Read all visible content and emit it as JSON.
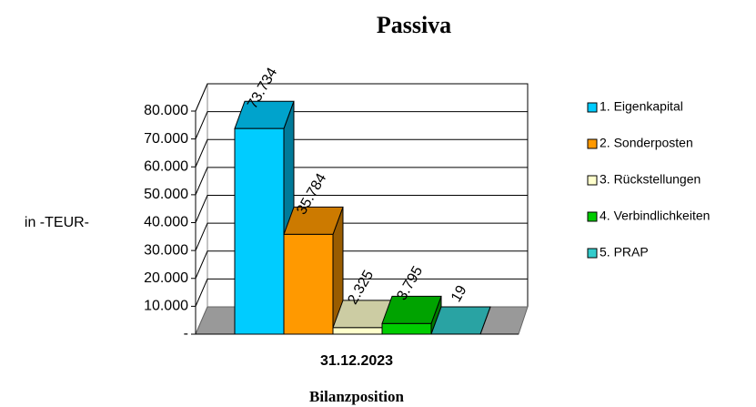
{
  "chart_data": {
    "type": "bar",
    "title": "Passiva",
    "x_label": "Bilanzposition",
    "y_label": "in -TEUR-",
    "categories": [
      "31.12.2023"
    ],
    "series": [
      {
        "name": "1. Eigenkapital",
        "color": "#00ccff",
        "values": [
          73734
        ],
        "value_labels": [
          "73.734"
        ]
      },
      {
        "name": "2. Sonderposten",
        "color": "#ff9900",
        "values": [
          35784
        ],
        "value_labels": [
          "35.784"
        ]
      },
      {
        "name": "3. Rückstellungen",
        "color": "#ffffcc",
        "values": [
          2325
        ],
        "value_labels": [
          "2.325"
        ]
      },
      {
        "name": "4. Verbindlichkeiten",
        "color": "#00cc00",
        "values": [
          3795
        ],
        "value_labels": [
          "3.795"
        ]
      },
      {
        "name": "5. PRAP",
        "color": "#33cccc",
        "values": [
          19
        ],
        "value_labels": [
          "19"
        ]
      }
    ],
    "ylim": [
      0,
      80000
    ],
    "yticks": [
      {
        "value": 0,
        "label": "-"
      },
      {
        "value": 10000,
        "label": "10.000"
      },
      {
        "value": 20000,
        "label": "20.000"
      },
      {
        "value": 30000,
        "label": "30.000"
      },
      {
        "value": 40000,
        "label": "40.000"
      },
      {
        "value": 50000,
        "label": "50.000"
      },
      {
        "value": 60000,
        "label": "60.000"
      },
      {
        "value": 70000,
        "label": "70.000"
      },
      {
        "value": 80000,
        "label": "80.000"
      }
    ],
    "grid": true,
    "legend": "right"
  }
}
